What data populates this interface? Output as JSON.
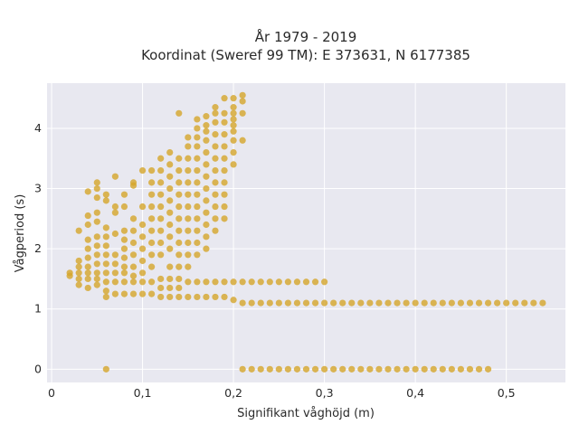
{
  "chart_data": {
    "type": "scatter",
    "title_line1": "År 1979 - 2019",
    "title_line2": "Koordinat (Sweref 99 TM): E 373631, N 6177385",
    "xlabel": "Signifikant våghöjd (m)",
    "ylabel": "Vågperiod (s)",
    "xlim": [
      -0.005,
      0.565
    ],
    "ylim": [
      -0.22,
      4.75
    ],
    "xticks": [
      0,
      0.1,
      0.2,
      0.3,
      0.4,
      0.5
    ],
    "xtick_labels": [
      "0",
      "0,1",
      "0,2",
      "0,3",
      "0,4",
      "0,5"
    ],
    "yticks": [
      0,
      1,
      2,
      3,
      4
    ],
    "ytick_labels": [
      "0",
      "1",
      "2",
      "3",
      "4"
    ],
    "grid": true,
    "marker_color": "#d4a52a",
    "plot_bg": "#e8e8f0",
    "series": [
      {
        "x": [
          0.02,
          0.02,
          0.03,
          0.03,
          0.03,
          0.03,
          0.03,
          0.03,
          0.04,
          0.04,
          0.04,
          0.04,
          0.04,
          0.04,
          0.04,
          0.04,
          0.04,
          0.04,
          0.05,
          0.05,
          0.05,
          0.05,
          0.05,
          0.05,
          0.05,
          0.05,
          0.05,
          0.05,
          0.05,
          0.05,
          0.06,
          0.06,
          0.06,
          0.06,
          0.06,
          0.06,
          0.06,
          0.06,
          0.06,
          0.06,
          0.06,
          0.07,
          0.07,
          0.07,
          0.07,
          0.07,
          0.07,
          0.07,
          0.07,
          0.07,
          0.08,
          0.08,
          0.08,
          0.08,
          0.08,
          0.08,
          0.08,
          0.08,
          0.08,
          0.08,
          0.09,
          0.09,
          0.09,
          0.09,
          0.09,
          0.09,
          0.09,
          0.09,
          0.09,
          0.09,
          0.1,
          0.1,
          0.1,
          0.1,
          0.1,
          0.1,
          0.1,
          0.1,
          0.1,
          0.11,
          0.11,
          0.11,
          0.11,
          0.11,
          0.11,
          0.11,
          0.11,
          0.11,
          0.11,
          0.11,
          0.12,
          0.12,
          0.12,
          0.12,
          0.12,
          0.12,
          0.12,
          0.12,
          0.12,
          0.12,
          0.12,
          0.12,
          0.13,
          0.13,
          0.13,
          0.13,
          0.13,
          0.13,
          0.13,
          0.13,
          0.13,
          0.13,
          0.13,
          0.13,
          0.13,
          0.14,
          0.14,
          0.14,
          0.14,
          0.14,
          0.14,
          0.14,
          0.14,
          0.14,
          0.14,
          0.14,
          0.14,
          0.14,
          0.14,
          0.15,
          0.15,
          0.15,
          0.15,
          0.15,
          0.15,
          0.15,
          0.15,
          0.15,
          0.15,
          0.15,
          0.15,
          0.15,
          0.15,
          0.16,
          0.16,
          0.16,
          0.16,
          0.16,
          0.16,
          0.16,
          0.16,
          0.16,
          0.16,
          0.16,
          0.16,
          0.16,
          0.16,
          0.16,
          0.17,
          0.17,
          0.17,
          0.17,
          0.17,
          0.17,
          0.17,
          0.17,
          0.17,
          0.17,
          0.17,
          0.17,
          0.17,
          0.17,
          0.17,
          0.18,
          0.18,
          0.18,
          0.18,
          0.18,
          0.18,
          0.18,
          0.18,
          0.18,
          0.18,
          0.18,
          0.18,
          0.18,
          0.18,
          0.19,
          0.19,
          0.19,
          0.19,
          0.19,
          0.19,
          0.19,
          0.19,
          0.19,
          0.19,
          0.19,
          0.19,
          0.19,
          0.2,
          0.2,
          0.2,
          0.2,
          0.2,
          0.2,
          0.2,
          0.2,
          0.2,
          0.2,
          0.2,
          0.21,
          0.21,
          0.21,
          0.21,
          0.21,
          0.21,
          0.22,
          0.23,
          0.24,
          0.25,
          0.26,
          0.27,
          0.28,
          0.29,
          0.3,
          0.22,
          0.23,
          0.24,
          0.25,
          0.26,
          0.27,
          0.28,
          0.29,
          0.3,
          0.31,
          0.32,
          0.33,
          0.34,
          0.35,
          0.36,
          0.37,
          0.38,
          0.39,
          0.4,
          0.41,
          0.42,
          0.43,
          0.44,
          0.45,
          0.46,
          0.47,
          0.48,
          0.49,
          0.5,
          0.51,
          0.52,
          0.53,
          0.54,
          0.21,
          0.22,
          0.23,
          0.24,
          0.25,
          0.26,
          0.27,
          0.28,
          0.29,
          0.3,
          0.31,
          0.32,
          0.33,
          0.34,
          0.35,
          0.36,
          0.37,
          0.38,
          0.39,
          0.4,
          0.41,
          0.42,
          0.43,
          0.44,
          0.45,
          0.46,
          0.47,
          0.48,
          0.06
        ],
        "y": [
          1.55,
          1.6,
          1.4,
          1.5,
          1.6,
          1.7,
          1.8,
          2.3,
          1.35,
          1.5,
          1.6,
          1.7,
          1.85,
          2.0,
          2.15,
          2.4,
          2.55,
          2.95,
          1.4,
          1.5,
          1.6,
          1.75,
          1.9,
          2.05,
          2.2,
          2.45,
          2.6,
          2.85,
          3.0,
          3.1,
          1.2,
          1.3,
          1.45,
          1.6,
          1.75,
          1.9,
          2.05,
          2.2,
          2.35,
          2.8,
          2.9,
          1.25,
          1.45,
          1.6,
          1.75,
          1.9,
          2.25,
          2.6,
          2.7,
          3.2,
          1.25,
          1.45,
          1.6,
          1.7,
          1.85,
          2.0,
          2.15,
          2.3,
          2.7,
          2.9,
          1.25,
          1.45,
          1.55,
          1.7,
          1.9,
          2.1,
          2.3,
          2.5,
          3.1,
          3.05,
          1.25,
          1.45,
          1.6,
          1.8,
          2.0,
          2.2,
          2.4,
          2.7,
          3.3,
          1.25,
          1.45,
          1.7,
          1.9,
          2.1,
          2.3,
          2.5,
          2.7,
          2.9,
          3.1,
          3.3,
          1.2,
          1.35,
          1.5,
          1.9,
          2.1,
          2.3,
          2.5,
          2.7,
          2.9,
          3.1,
          3.3,
          3.5,
          1.2,
          1.35,
          1.5,
          1.7,
          2.0,
          2.2,
          2.4,
          2.6,
          2.8,
          3.0,
          3.2,
          3.4,
          3.6,
          1.2,
          1.35,
          1.5,
          1.7,
          1.9,
          2.1,
          2.3,
          2.5,
          2.7,
          2.9,
          3.1,
          3.3,
          3.5,
          4.25,
          1.2,
          1.45,
          1.7,
          1.9,
          2.1,
          2.3,
          2.5,
          2.7,
          2.9,
          3.1,
          3.3,
          3.5,
          3.7,
          3.85,
          1.2,
          1.45,
          1.9,
          2.1,
          2.3,
          2.5,
          2.7,
          2.9,
          3.1,
          3.3,
          3.5,
          3.7,
          3.85,
          4.0,
          4.15,
          1.2,
          1.45,
          2.0,
          2.2,
          2.4,
          2.6,
          2.8,
          3.0,
          3.2,
          3.4,
          3.6,
          3.8,
          3.95,
          4.05,
          4.2,
          1.2,
          1.45,
          2.3,
          2.5,
          2.7,
          2.9,
          3.1,
          3.3,
          3.5,
          3.7,
          3.9,
          4.1,
          4.25,
          4.35,
          1.2,
          1.45,
          2.5,
          2.7,
          2.9,
          3.1,
          3.3,
          3.5,
          3.7,
          3.9,
          4.1,
          4.25,
          4.5,
          1.15,
          1.45,
          3.4,
          3.6,
          3.8,
          3.95,
          4.05,
          4.15,
          4.25,
          4.35,
          4.5,
          1.1,
          1.45,
          3.8,
          4.25,
          4.45,
          4.55,
          1.45,
          1.45,
          1.45,
          1.45,
          1.45,
          1.45,
          1.45,
          1.45,
          1.45,
          1.1,
          1.1,
          1.1,
          1.1,
          1.1,
          1.1,
          1.1,
          1.1,
          1.1,
          1.1,
          1.1,
          1.1,
          1.1,
          1.1,
          1.1,
          1.1,
          1.1,
          1.1,
          1.1,
          1.1,
          1.1,
          1.1,
          1.1,
          1.1,
          1.1,
          1.1,
          1.1,
          1.1,
          1.1,
          1.1,
          1.1,
          1.1,
          1.1,
          0,
          0,
          0,
          0,
          0,
          0,
          0,
          0,
          0,
          0,
          0,
          0,
          0,
          0,
          0,
          0,
          0,
          0,
          0,
          0,
          0,
          0,
          0,
          0,
          0,
          0,
          0,
          0,
          0
        ]
      }
    ]
  }
}
